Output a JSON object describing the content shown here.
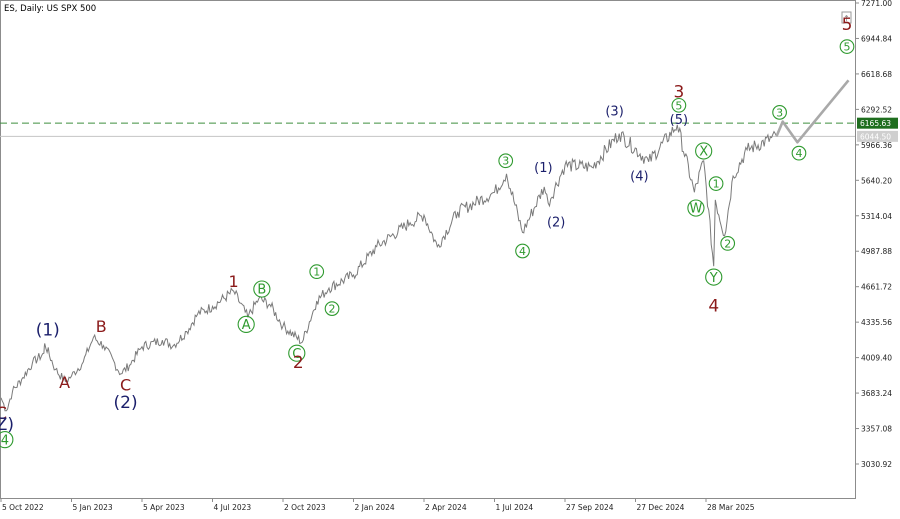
{
  "chart_data": {
    "type": "line",
    "title": "ES, Daily:  US SPX 500",
    "y_ticks": [
      "7271.00",
      "6944.84",
      "6618.68",
      "6292.52",
      "5966.36",
      "5640.20",
      "5314.04",
      "4987.88",
      "4661.72",
      "4335.56",
      "4009.40",
      "3683.24",
      "3357.08",
      "3030.92"
    ],
    "x_ticks": [
      "5 Oct 2022",
      "5 Jan 2023",
      "5 Apr 2023",
      "4 Jul 2023",
      "2 Oct 2023",
      "2 Jan 2024",
      "2 Apr 2024",
      "1 Jul 2024",
      "27 Sep 2024",
      "27 Dec 2024",
      "28 Mar 2025"
    ],
    "ylim": [
      2855,
      7271
    ],
    "price_label": "6165.63",
    "current_label": "6044.50",
    "colors": {
      "price_line": "#7a7a7a",
      "projection": "#a9a9a9",
      "grid_dashed": "#3f8f3f",
      "price_box": "#1f6e1f",
      "current_box": "#cfcfcf",
      "dark_red": "#8b1a1a",
      "navy": "#1b1f6b",
      "green": "#2f9a2f"
    },
    "series": [
      {
        "points": [
          [
            "5 Oct 2022",
            3640
          ],
          [
            "12 Oct 2022",
            3520
          ],
          [
            "20 Oct 2022",
            3700
          ],
          [
            "1 Nov 2022",
            3810
          ],
          [
            "15 Nov 2022",
            3960
          ],
          [
            "30 Nov 2022",
            4050
          ],
          [
            "1 Dec 2022",
            4140
          ],
          [
            "15 Dec 2022",
            3900
          ],
          [
            "28 Dec 2022",
            3790
          ],
          [
            "5 Jan 2023",
            3840
          ],
          [
            "20 Jan 2023",
            3970
          ],
          [
            "2 Feb 2023",
            4195
          ],
          [
            "15 Feb 2023",
            4120
          ],
          [
            "9 Mar 2023",
            3860
          ],
          [
            "20 Mar 2023",
            3940
          ],
          [
            "5 Apr 2023",
            4110
          ],
          [
            "1 May 2023",
            4170
          ],
          [
            "15 May 2023",
            4120
          ],
          [
            "1 Jun 2023",
            4250
          ],
          [
            "15 Jun 2023",
            4410
          ],
          [
            "4 Jul 2023",
            4480
          ],
          [
            "31 Jul 2023",
            4620
          ],
          [
            "18 Aug 2023",
            4380
          ],
          [
            "1 Sep 2023",
            4550
          ],
          [
            "15 Sep 2023",
            4500
          ],
          [
            "2 Oct 2023",
            4300
          ],
          [
            "27 Oct 2023",
            4150
          ],
          [
            "15 Nov 2023",
            4530
          ],
          [
            "1 Dec 2023",
            4650
          ],
          [
            "2 Jan 2024",
            4770
          ],
          [
            "1 Feb 2024",
            5030
          ],
          [
            "15 Mar 2024",
            5250
          ],
          [
            "2 Apr 2024",
            5320
          ],
          [
            "19 Apr 2024",
            5030
          ],
          [
            "15 May 2024",
            5350
          ],
          [
            "1 Jul 2024",
            5530
          ],
          [
            "16 Jul 2024",
            5700
          ],
          [
            "5 Aug 2024",
            5160
          ],
          [
            "1 Sep 2024",
            5580
          ],
          [
            "6 Sep 2024",
            5430
          ],
          [
            "27 Sep 2024",
            5780
          ],
          [
            "1 Nov 2024",
            5760
          ],
          [
            "6 Dec 2024",
            6070
          ],
          [
            "13 Jan 2025",
            5810
          ],
          [
            "19 Feb 2025",
            6150
          ],
          [
            "13 Mar 2025",
            5530
          ],
          [
            "25 Mar 2025",
            5820
          ],
          [
            "7 Apr 2025",
            4850
          ],
          [
            "9 Apr 2025",
            5460
          ],
          [
            "21 Apr 2025",
            5130
          ],
          [
            "2 May 2025",
            5680
          ],
          [
            "20 May 2025",
            5920
          ],
          [
            "27 Jun 2025",
            6044.5
          ]
        ]
      },
      {
        "name": "projection",
        "points": [
          [
            "27 Jun 2025",
            6044.5
          ],
          [
            "5 Jul 2025",
            6180
          ],
          [
            "24 Jul 2025",
            5990
          ],
          [
            "28 Sep 2025",
            6560
          ]
        ]
      }
    ],
    "labels": [
      {
        "text": "C",
        "date": "5 Oct 2022",
        "y": 3500,
        "color": "dark_red",
        "size": 17,
        "circle": false
      },
      {
        "text": "Z)",
        "date": "10 Oct 2022",
        "y": 3400,
        "color": "navy",
        "size": 17,
        "circle": false
      },
      {
        "text": "4",
        "date": "10 Oct 2022",
        "y": 3255,
        "color": "green",
        "size": 13,
        "circle": true
      },
      {
        "text": "(1)",
        "date": "5 Dec 2022",
        "y": 4270,
        "color": "navy",
        "size": 17,
        "circle": false
      },
      {
        "text": "A",
        "date": "27 Dec 2022",
        "y": 3785,
        "color": "dark_red",
        "size": 16,
        "circle": false
      },
      {
        "text": "B",
        "date": "12 Feb 2023",
        "y": 4300,
        "color": "dark_red",
        "size": 16,
        "circle": false
      },
      {
        "text": "C",
        "date": "15 Mar 2023",
        "y": 3760,
        "color": "dark_red",
        "size": 16,
        "circle": false
      },
      {
        "text": "(2)",
        "date": "15 Mar 2023",
        "y": 3600,
        "color": "navy",
        "size": 17,
        "circle": false
      },
      {
        "text": "1",
        "date": "31 Jul 2023",
        "y": 4710,
        "color": "dark_red",
        "size": 16,
        "circle": false
      },
      {
        "text": "B",
        "date": "5 Sep 2023",
        "y": 4640,
        "color": "green",
        "size": 13,
        "circle": true
      },
      {
        "text": "A",
        "date": "16 Aug 2023",
        "y": 4315,
        "color": "green",
        "size": 13,
        "circle": true
      },
      {
        "text": "C",
        "date": "20 Oct 2023",
        "y": 4050,
        "color": "green",
        "size": 13,
        "circle": true
      },
      {
        "text": "2",
        "date": "22 Oct 2023",
        "y": 3970,
        "color": "dark_red",
        "size": 17,
        "circle": false
      },
      {
        "text": "1",
        "date": "15 Nov 2023",
        "y": 4800,
        "color": "green",
        "size": 11,
        "circle": true
      },
      {
        "text": "2",
        "date": "5 Dec 2023",
        "y": 4460,
        "color": "green",
        "size": 11,
        "circle": true
      },
      {
        "text": "3",
        "date": "15 Jul 2024",
        "y": 5820,
        "color": "green",
        "size": 11,
        "circle": true
      },
      {
        "text": "4",
        "date": "5 Aug 2024",
        "y": 4990,
        "color": "green",
        "size": 11,
        "circle": true
      },
      {
        "text": "(1)",
        "date": "31 Aug 2024",
        "y": 5760,
        "color": "navy",
        "size": 13,
        "circle": false
      },
      {
        "text": "(2)",
        "date": "16 Sep 2024",
        "y": 5260,
        "color": "navy",
        "size": 13,
        "circle": false
      },
      {
        "text": "(3)",
        "date": "30 Nov 2024",
        "y": 6280,
        "color": "navy",
        "size": 13,
        "circle": false
      },
      {
        "text": "(4)",
        "date": "1 Jan 2025",
        "y": 5680,
        "color": "navy",
        "size": 13,
        "circle": false
      },
      {
        "text": "3",
        "date": "21 Feb 2025",
        "y": 6460,
        "color": "dark_red",
        "size": 17,
        "circle": false
      },
      {
        "text": "5",
        "date": "21 Feb 2025",
        "y": 6330,
        "color": "green",
        "size": 11,
        "circle": true
      },
      {
        "text": "(5)",
        "date": "21 Feb 2025",
        "y": 6200,
        "color": "navy",
        "size": 13,
        "circle": false
      },
      {
        "text": "X",
        "date": "25 Mar 2025",
        "y": 5910,
        "color": "green",
        "size": 13,
        "circle": true
      },
      {
        "text": "W",
        "date": "15 Mar 2025",
        "y": 5385,
        "color": "green",
        "size": 13,
        "circle": true
      },
      {
        "text": "1",
        "date": "10 Apr 2025",
        "y": 5610,
        "color": "green",
        "size": 11,
        "circle": true
      },
      {
        "text": "2",
        "date": "25 Apr 2025",
        "y": 5060,
        "color": "green",
        "size": 11,
        "circle": true
      },
      {
        "text": "Y",
        "date": "7 Apr 2025",
        "y": 4750,
        "color": "green",
        "size": 13,
        "circle": true
      },
      {
        "text": "4",
        "date": "7 Apr 2025",
        "y": 4490,
        "color": "dark_red",
        "size": 17,
        "circle": false
      },
      {
        "text": "3",
        "date": "1 Jul 2025",
        "y": 6265,
        "color": "green",
        "size": 11,
        "circle": true
      },
      {
        "text": "4",
        "date": "26 Jul 2025",
        "y": 5890,
        "color": "green",
        "size": 11,
        "circle": true
      },
      {
        "text": "5",
        "date": "26 Sep 2025",
        "y": 7080,
        "color": "dark_red",
        "size": 17,
        "circle": false
      },
      {
        "text": "5",
        "date": "26 Sep 2025",
        "y": 6870,
        "color": "green",
        "size": 11,
        "circle": true
      }
    ]
  }
}
